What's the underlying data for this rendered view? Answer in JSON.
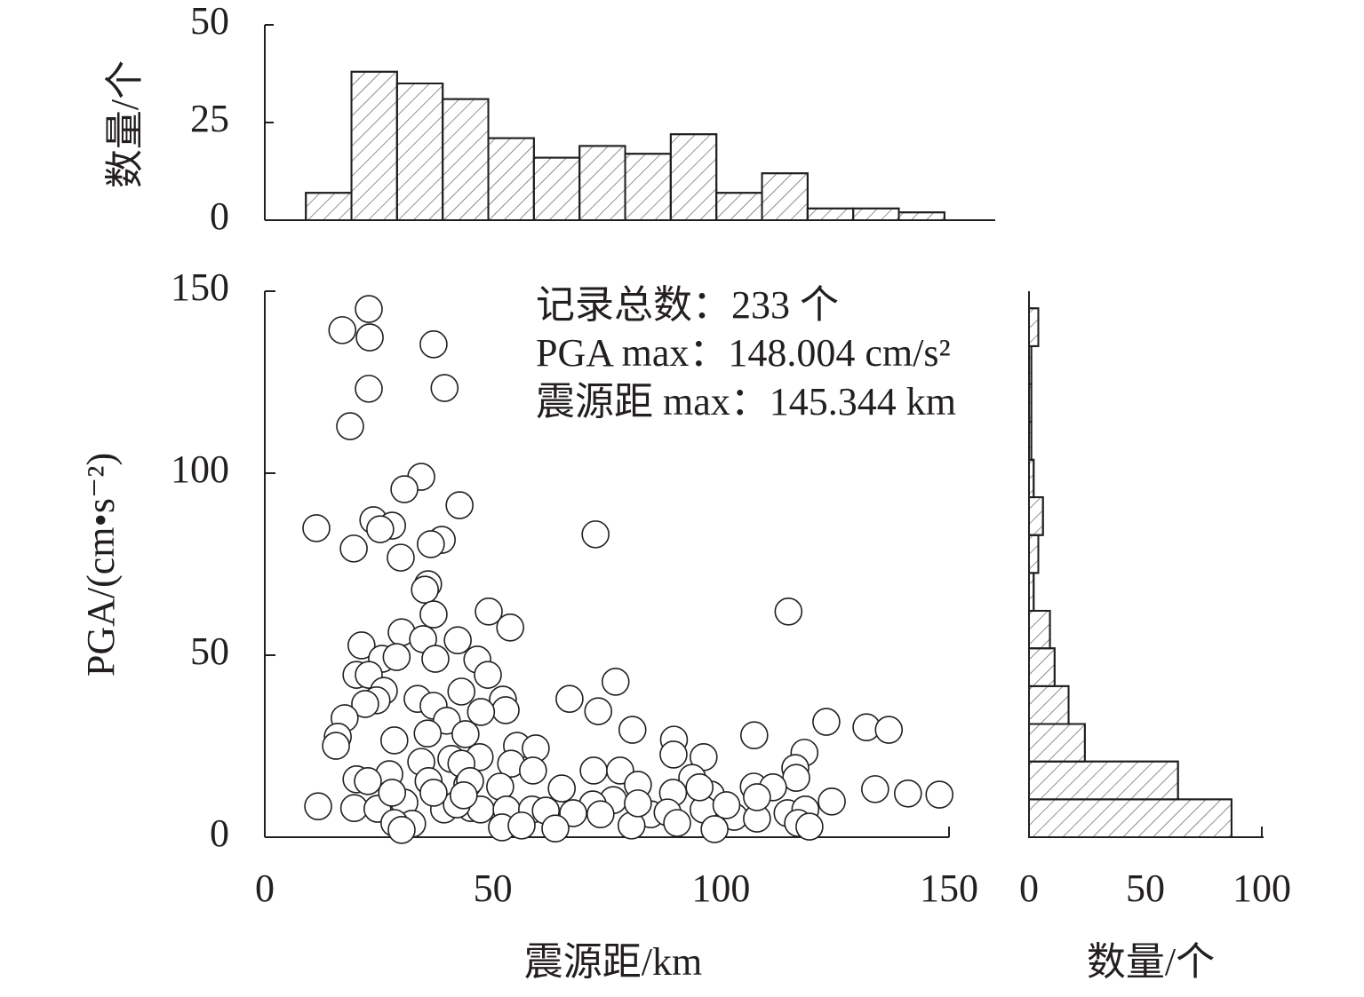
{
  "chart_data": [
    {
      "type": "histogram",
      "orientation": "vertical",
      "ylabel": "数量/个",
      "bins": [
        9,
        19,
        29,
        39,
        49,
        59,
        69,
        79,
        89,
        99,
        109,
        119,
        129,
        139,
        149
      ],
      "counts": [
        7,
        38,
        35,
        31,
        21,
        16,
        19,
        17,
        22,
        7,
        12,
        3,
        3,
        2
      ],
      "xlim": [
        0,
        150
      ],
      "ylim": [
        0,
        50
      ],
      "yticks": [
        0,
        25,
        50
      ],
      "color": "#ffffff"
    },
    {
      "type": "scatter",
      "xlabel": "震源距/km",
      "ylabel": "PGA/(cm•s⁻²)",
      "annotations": [
        "记录总数：233 个",
        "PGA max：148.004 cm/s²",
        "震源距 max：145.344 km"
      ],
      "xlim": [
        0,
        150
      ],
      "ylim": [
        0,
        150
      ],
      "xticks": [
        0,
        50,
        100,
        150
      ],
      "yticks": [
        0,
        50,
        100,
        150
      ],
      "color": "#ffffff",
      "x": [
        11.7,
        11.3,
        17,
        22.8,
        23,
        22.8,
        18.7,
        37,
        39.4,
        34.3,
        30.6,
        42.7,
        23.8,
        27.9,
        25.3,
        19.5,
        29.8,
        38.8,
        36.4,
        35.8,
        35.1,
        72.5,
        114.8,
        49.1,
        53.8,
        37,
        30,
        21.2,
        42.3,
        34.7,
        25.7,
        28.9,
        37.4,
        46.6,
        20.1,
        22.8,
        48.9,
        26.1,
        24.5,
        22,
        43.1,
        33.5,
        37,
        52.2,
        52.8,
        47.4,
        76.9,
        66.8,
        73.1,
        17.5,
        39.9,
        123.1,
        131.9,
        136.8,
        16,
        15.6,
        28.4,
        35.7,
        44,
        55.3,
        59.4,
        80.6,
        89.7,
        107.3,
        89.6,
        96.2,
        118.3,
        40.9,
        47.1,
        34.3,
        43.1,
        54,
        58.8,
        72.1,
        77.9,
        116.3,
        116.5,
        93.7,
        27.3,
        20.1,
        22.6,
        35.9,
        44.4,
        45,
        51.6,
        65.1,
        81.8,
        107.2,
        111.4,
        133.8,
        141,
        147.9,
        89.5,
        97.8,
        76.4,
        71.9,
        124.3,
        30.6,
        19.6,
        24.7,
        39.3,
        45.2,
        47.3,
        53,
        58.6,
        61.6,
        67.6,
        73.6,
        84.6,
        88.3,
        96.2,
        102.9,
        107.9,
        114.6,
        118.5,
        32.3,
        28.4,
        30,
        52,
        56.3,
        63.7,
        80.4,
        90.4,
        98.6,
        116.9,
        119.4,
        42.1,
        43.6,
        37,
        27.9,
        95.3,
        81.8,
        101.2,
        107.9
      ],
      "y": [
        8.5,
        84.9,
        139.3,
        145.1,
        137.3,
        123.2,
        112.9,
        135.4,
        123.4,
        99,
        95.6,
        91.2,
        87.1,
        85.6,
        84.6,
        79.3,
        76.8,
        81.7,
        80.5,
        69.5,
        68,
        83.2,
        62,
        62,
        57.6,
        61.2,
        56.3,
        52.7,
        54.1,
        54.4,
        49,
        49.5,
        49,
        48.8,
        44.6,
        44.6,
        44.6,
        40.2,
        37.6,
        36.6,
        40,
        38,
        36.1,
        37.8,
        34.9,
        34.4,
        42.7,
        38,
        34.6,
        32.7,
        32,
        31.7,
        30.2,
        29.5,
        27.6,
        25.1,
        26.6,
        28.5,
        28.3,
        25.1,
        24.4,
        29.5,
        26.8,
        28,
        22.7,
        22,
        23.2,
        21.5,
        22,
        20.7,
        20.2,
        20.2,
        18.3,
        18.3,
        18.3,
        19,
        16.3,
        16.3,
        17.3,
        15.9,
        15.4,
        15.4,
        14.4,
        15.4,
        13.9,
        13.4,
        14.4,
        13.9,
        13.7,
        13.2,
        12,
        11.7,
        12.2,
        11.7,
        10.2,
        9,
        9.8,
        9.5,
        8,
        7.8,
        7.6,
        8,
        7.6,
        7.6,
        7.6,
        7.3,
        6.6,
        6.3,
        6.3,
        6.8,
        7.6,
        5.6,
        5.1,
        6.6,
        7.6,
        3.7,
        3.9,
        2,
        2.7,
        3.2,
        2.4,
        3.2,
        3.9,
        2.2,
        3.9,
        2.9,
        9,
        11.5,
        12.2,
        12.2,
        13.7,
        9.3,
        8.8,
        11
      ]
    },
    {
      "type": "histogram",
      "orientation": "horizontal",
      "xlabel": "数量/个",
      "bins": [
        0,
        10.4,
        20.8,
        31.1,
        41.5,
        51.9,
        62.2,
        72.6,
        83.0,
        93.4,
        103.7,
        114.1,
        124.5,
        134.9,
        145.3
      ],
      "counts": [
        87,
        64,
        24,
        17,
        11,
        9,
        2,
        4,
        6,
        2,
        1,
        1,
        1,
        4
      ],
      "xlim": [
        0,
        100
      ],
      "xticks": [
        0,
        50,
        100
      ],
      "ylim": [
        0,
        150
      ],
      "color": "#ffffff"
    }
  ]
}
